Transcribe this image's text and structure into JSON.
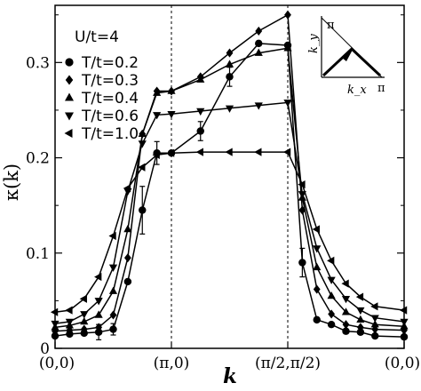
{
  "chart_data": {
    "type": "line",
    "annotation": "U/t=4",
    "xlabel": "k",
    "ylabel": "κ(k)",
    "ylim": [
      0,
      0.36
    ],
    "yticks": [
      0,
      0.1,
      0.2,
      0.3
    ],
    "ytick_labels": [
      "0",
      "0.1",
      "0.2",
      "0.3"
    ],
    "xlim": [
      0,
      3
    ],
    "xticks": [
      0,
      1,
      2,
      3
    ],
    "xtick_labels": [
      "(0,0)",
      "(π,0)",
      "(π/2,π/2)",
      "(0,0)"
    ],
    "vertical_lines_at": [
      1,
      2
    ],
    "legend_position": "left-upper",
    "series": [
      {
        "name": "T/t=0.2",
        "marker": "circle",
        "points": [
          [
            0,
            0.013
          ],
          [
            0.125,
            0.015
          ],
          [
            0.25,
            0.016
          ],
          [
            0.375,
            0.017
          ],
          [
            0.5,
            0.02
          ],
          [
            0.625,
            0.07
          ],
          [
            0.75,
            0.145
          ],
          [
            0.875,
            0.205
          ],
          [
            1,
            0.205
          ],
          [
            1.25,
            0.228
          ],
          [
            1.5,
            0.285
          ],
          [
            1.75,
            0.32
          ],
          [
            2,
            0.318
          ],
          [
            2.125,
            0.09
          ],
          [
            2.25,
            0.03
          ],
          [
            2.375,
            0.025
          ],
          [
            2.5,
            0.018
          ],
          [
            2.625,
            0.017
          ],
          [
            2.75,
            0.013
          ],
          [
            3,
            0.012
          ]
        ],
        "errors": [
          [
            0.375,
            0.008
          ],
          [
            0.5,
            0.006
          ],
          [
            0.75,
            0.025
          ],
          [
            0.875,
            0.012
          ],
          [
            1.25,
            0.01
          ],
          [
            1.5,
            0.01
          ],
          [
            2.125,
            0.015
          ]
        ]
      },
      {
        "name": "T/t=0.3",
        "marker": "diamond",
        "points": [
          [
            0,
            0.018
          ],
          [
            0.125,
            0.019
          ],
          [
            0.25,
            0.02
          ],
          [
            0.375,
            0.022
          ],
          [
            0.5,
            0.035
          ],
          [
            0.625,
            0.095
          ],
          [
            0.75,
            0.225
          ],
          [
            0.875,
            0.27
          ],
          [
            1,
            0.27
          ],
          [
            1.25,
            0.285
          ],
          [
            1.5,
            0.31
          ],
          [
            1.75,
            0.333
          ],
          [
            2,
            0.35
          ],
          [
            2.125,
            0.145
          ],
          [
            2.25,
            0.062
          ],
          [
            2.375,
            0.036
          ],
          [
            2.5,
            0.025
          ],
          [
            2.625,
            0.022
          ],
          [
            2.75,
            0.02
          ],
          [
            3,
            0.019
          ]
        ]
      },
      {
        "name": "T/t=0.4",
        "marker": "triangle-up",
        "points": [
          [
            0,
            0.022
          ],
          [
            0.125,
            0.024
          ],
          [
            0.25,
            0.028
          ],
          [
            0.375,
            0.035
          ],
          [
            0.5,
            0.06
          ],
          [
            0.625,
            0.125
          ],
          [
            0.75,
            0.225
          ],
          [
            0.875,
            0.268
          ],
          [
            1,
            0.27
          ],
          [
            1.25,
            0.282
          ],
          [
            1.5,
            0.298
          ],
          [
            1.75,
            0.31
          ],
          [
            2,
            0.315
          ],
          [
            2.125,
            0.158
          ],
          [
            2.25,
            0.085
          ],
          [
            2.375,
            0.055
          ],
          [
            2.5,
            0.038
          ],
          [
            2.625,
            0.03
          ],
          [
            2.75,
            0.025
          ],
          [
            3,
            0.023
          ]
        ]
      },
      {
        "name": "T/t=0.6",
        "marker": "triangle-down",
        "points": [
          [
            0,
            0.026
          ],
          [
            0.125,
            0.028
          ],
          [
            0.25,
            0.036
          ],
          [
            0.375,
            0.05
          ],
          [
            0.5,
            0.085
          ],
          [
            0.625,
            0.165
          ],
          [
            0.75,
            0.215
          ],
          [
            0.875,
            0.245
          ],
          [
            1,
            0.246
          ],
          [
            1.25,
            0.249
          ],
          [
            1.5,
            0.252
          ],
          [
            1.75,
            0.255
          ],
          [
            2,
            0.258
          ],
          [
            2.125,
            0.162
          ],
          [
            2.25,
            0.105
          ],
          [
            2.375,
            0.072
          ],
          [
            2.5,
            0.052
          ],
          [
            2.625,
            0.04
          ],
          [
            2.75,
            0.032
          ],
          [
            3,
            0.028
          ]
        ]
      },
      {
        "name": "T/t=1.0",
        "marker": "triangle-left",
        "points": [
          [
            0,
            0.038
          ],
          [
            0.125,
            0.04
          ],
          [
            0.25,
            0.052
          ],
          [
            0.375,
            0.075
          ],
          [
            0.5,
            0.118
          ],
          [
            0.625,
            0.168
          ],
          [
            0.75,
            0.19
          ],
          [
            0.875,
            0.203
          ],
          [
            1,
            0.205
          ],
          [
            1.25,
            0.206
          ],
          [
            1.5,
            0.206
          ],
          [
            1.75,
            0.206
          ],
          [
            2,
            0.206
          ],
          [
            2.125,
            0.172
          ],
          [
            2.25,
            0.125
          ],
          [
            2.375,
            0.092
          ],
          [
            2.5,
            0.068
          ],
          [
            2.625,
            0.054
          ],
          [
            2.75,
            0.044
          ],
          [
            3,
            0.04
          ]
        ]
      }
    ],
    "inset": {
      "xlabel": "k_x",
      "ylabel": "k_y",
      "x_tick": "π",
      "y_tick": "π"
    }
  }
}
